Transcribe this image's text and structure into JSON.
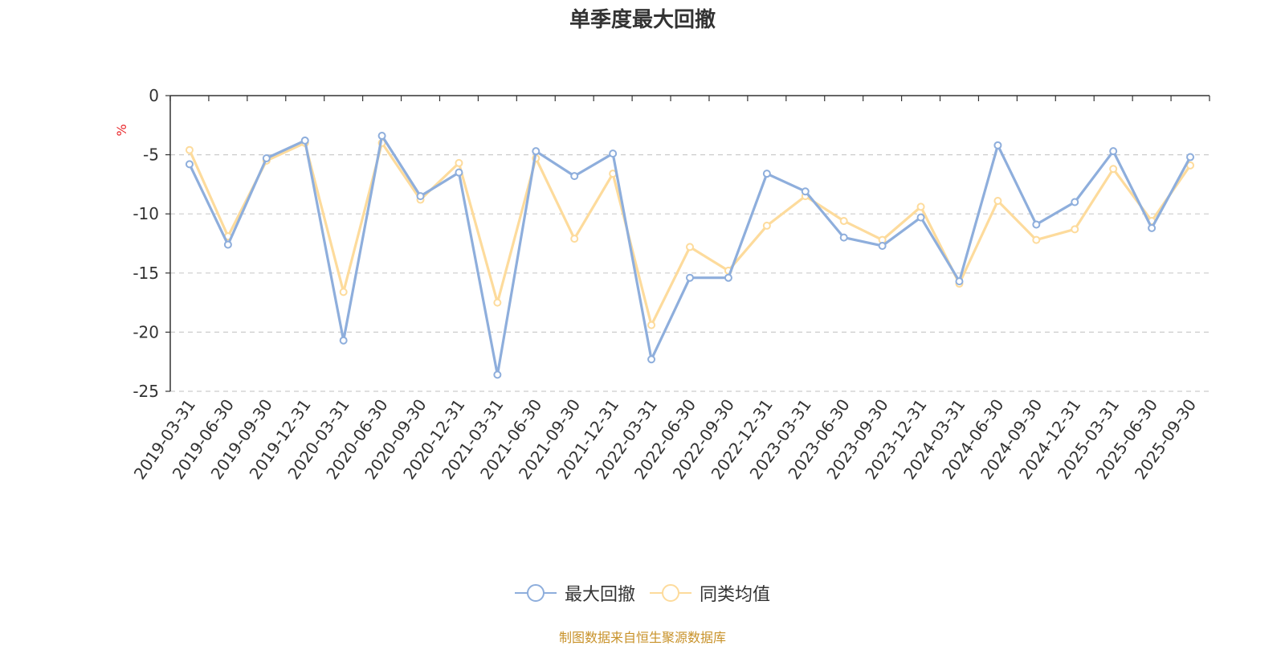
{
  "chart_data": {
    "type": "line",
    "title": "单季度最大回撤",
    "ylabel": "%",
    "ylim": [
      -25,
      0
    ],
    "yticks": [
      0,
      -5,
      -10,
      -15,
      -20,
      -25
    ],
    "grid": true,
    "legend_position": "bottom-center",
    "categories": [
      "2019-03-31",
      "2019-06-30",
      "2019-09-30",
      "2019-12-31",
      "2020-03-31",
      "2020-06-30",
      "2020-09-30",
      "2020-12-31",
      "2021-03-31",
      "2021-06-30",
      "2021-09-30",
      "2021-12-31",
      "2022-03-31",
      "2022-06-30",
      "2022-09-30",
      "2022-12-31",
      "2023-03-31",
      "2023-06-30",
      "2023-09-30",
      "2023-12-31",
      "2024-03-31",
      "2024-06-30",
      "2024-09-30",
      "2024-12-31",
      "2025-03-31",
      "2025-06-30",
      "2025-09-30"
    ],
    "series": [
      {
        "name": "最大回撤",
        "color": "#8eaedc",
        "values": [
          -5.8,
          -12.6,
          -5.3,
          -3.8,
          -20.7,
          -3.4,
          -8.5,
          -6.5,
          -23.6,
          -4.7,
          -6.8,
          -4.9,
          -22.3,
          -15.4,
          -15.4,
          -6.6,
          -8.1,
          -12.0,
          -12.7,
          -10.3,
          -15.7,
          -4.2,
          -10.9,
          -9.0,
          -4.7,
          -11.2,
          -5.2
        ]
      },
      {
        "name": "同类均值",
        "color": "#fddb9c",
        "values": [
          -4.6,
          -11.9,
          -5.5,
          -4.0,
          -16.6,
          -4.0,
          -8.8,
          -5.7,
          -17.5,
          -5.3,
          -12.1,
          -6.6,
          -19.4,
          -12.8,
          -14.8,
          -11.0,
          -8.5,
          -10.6,
          -12.2,
          -9.4,
          -15.9,
          -8.9,
          -12.2,
          -11.3,
          -6.2,
          -10.6,
          -5.9
        ]
      }
    ],
    "footer": "制图数据来自恒生聚源数据库"
  }
}
